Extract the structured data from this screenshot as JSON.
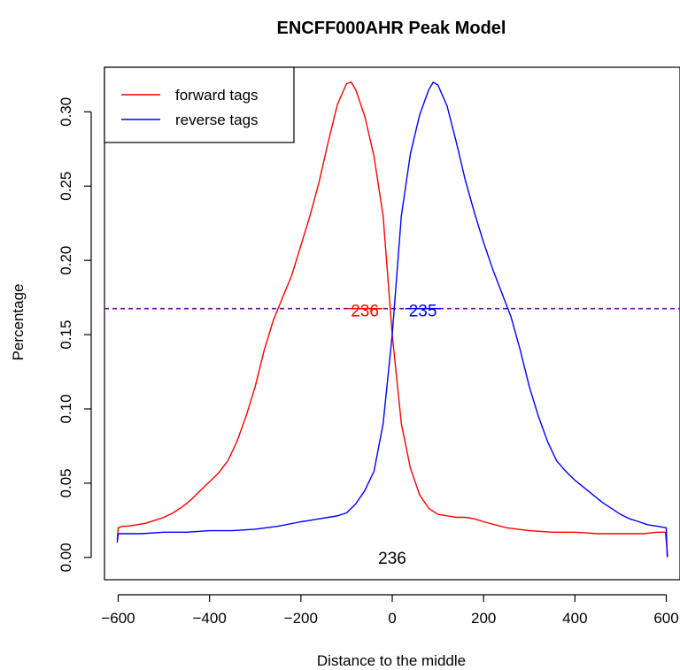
{
  "colors": {
    "forward": "#ff0000",
    "reverse": "#0000ff",
    "threshold": "#6a0dad",
    "axis": "#000000"
  },
  "chart_data": {
    "type": "line",
    "title": "ENCFF000AHR Peak Model",
    "xlabel": "Distance to the middle",
    "ylabel": "Percentage",
    "xlim": [
      -630,
      630
    ],
    "ylim": [
      -0.015,
      0.33
    ],
    "x_ticks": [
      -600,
      -400,
      -200,
      0,
      200,
      400,
      600
    ],
    "x_tick_labels": [
      "−600",
      "−400",
      "−200",
      "0",
      "200",
      "400",
      "600"
    ],
    "y_ticks": [
      0.0,
      0.05,
      0.1,
      0.15,
      0.2,
      0.25,
      0.3
    ],
    "y_tick_labels": [
      "0.00",
      "0.05",
      "0.10",
      "0.15",
      "0.20",
      "0.25",
      "0.30"
    ],
    "grid": false,
    "legend": {
      "position": "top-left",
      "entries": [
        "forward tags",
        "reverse tags"
      ]
    },
    "threshold_line": {
      "y": 0.1675,
      "style": "dashed"
    },
    "annotations": [
      {
        "text": "236",
        "x": -60,
        "y": 0.1665,
        "color": "red",
        "strike": true
      },
      {
        "text": "235",
        "x": 67,
        "y": 0.1665,
        "color": "blue",
        "strike": true
      },
      {
        "text": "236",
        "x": 0,
        "y": 0.0,
        "color": "black",
        "strike": false
      }
    ],
    "series": [
      {
        "name": "forward tags",
        "color": "#ff0000",
        "x": [
          -602,
          -600,
          -590,
          -580,
          -560,
          -540,
          -520,
          -500,
          -480,
          -460,
          -440,
          -420,
          -400,
          -380,
          -360,
          -340,
          -320,
          -300,
          -280,
          -260,
          -240,
          -220,
          -200,
          -180,
          -160,
          -140,
          -120,
          -100,
          -90,
          -80,
          -60,
          -40,
          -20,
          0,
          20,
          40,
          60,
          80,
          100,
          120,
          140,
          160,
          180,
          200,
          250,
          300,
          350,
          400,
          450,
          500,
          550,
          580,
          598,
          603
        ],
        "y": [
          0.012,
          0.02,
          0.021,
          0.021,
          0.022,
          0.023,
          0.025,
          0.027,
          0.03,
          0.034,
          0.039,
          0.045,
          0.051,
          0.057,
          0.065,
          0.078,
          0.095,
          0.115,
          0.14,
          0.16,
          0.175,
          0.19,
          0.21,
          0.23,
          0.253,
          0.28,
          0.305,
          0.319,
          0.32,
          0.315,
          0.297,
          0.27,
          0.23,
          0.15,
          0.09,
          0.06,
          0.042,
          0.033,
          0.029,
          0.028,
          0.027,
          0.027,
          0.026,
          0.024,
          0.02,
          0.018,
          0.017,
          0.017,
          0.016,
          0.016,
          0.016,
          0.017,
          0.017,
          0.001
        ]
      },
      {
        "name": "reverse tags",
        "color": "#0000ff",
        "x": [
          -602,
          -600,
          -550,
          -500,
          -450,
          -400,
          -350,
          -300,
          -250,
          -200,
          -180,
          -160,
          -140,
          -120,
          -100,
          -80,
          -60,
          -40,
          -20,
          0,
          20,
          40,
          60,
          80,
          90,
          100,
          120,
          140,
          160,
          180,
          200,
          220,
          240,
          260,
          280,
          300,
          320,
          340,
          360,
          380,
          400,
          420,
          440,
          460,
          480,
          500,
          520,
          540,
          560,
          580,
          600,
          602
        ],
        "y": [
          0.01,
          0.016,
          0.016,
          0.017,
          0.017,
          0.018,
          0.018,
          0.019,
          0.021,
          0.024,
          0.025,
          0.026,
          0.027,
          0.028,
          0.03,
          0.036,
          0.045,
          0.058,
          0.09,
          0.15,
          0.23,
          0.272,
          0.298,
          0.315,
          0.32,
          0.318,
          0.304,
          0.28,
          0.254,
          0.232,
          0.212,
          0.194,
          0.178,
          0.162,
          0.14,
          0.115,
          0.095,
          0.078,
          0.065,
          0.058,
          0.052,
          0.047,
          0.042,
          0.037,
          0.033,
          0.029,
          0.026,
          0.024,
          0.022,
          0.021,
          0.02,
          0.0
        ]
      }
    ]
  }
}
